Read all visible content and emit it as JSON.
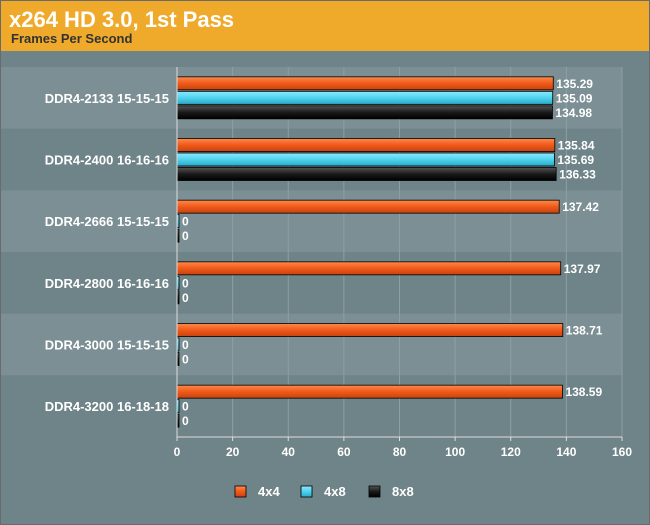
{
  "chart_data": {
    "type": "bar",
    "orientation": "horizontal",
    "title": "x264 HD 3.0, 1st Pass",
    "subtitle": "Frames Per Second",
    "categories": [
      "DDR4-2133 15-15-15",
      "DDR4-2400 16-16-16",
      "DDR4-2666 15-15-15",
      "DDR4-2800 16-16-16",
      "DDR4-3000 15-15-15",
      "DDR4-3200 16-18-18"
    ],
    "series": [
      {
        "name": "4x4",
        "color": "#f05a1a",
        "values": [
          135.29,
          135.84,
          137.42,
          137.97,
          138.71,
          138.59
        ]
      },
      {
        "name": "4x8",
        "color": "#4fd3ef",
        "values": [
          135.09,
          135.69,
          0,
          0,
          0,
          0
        ]
      },
      {
        "name": "8x8",
        "color": "#111111",
        "values": [
          134.98,
          136.33,
          0,
          0,
          0,
          0
        ]
      }
    ],
    "xlim": [
      0,
      160
    ],
    "xticks": [
      0,
      20,
      40,
      60,
      80,
      100,
      120,
      140,
      160
    ],
    "grid": true,
    "legend_position": "bottom"
  }
}
